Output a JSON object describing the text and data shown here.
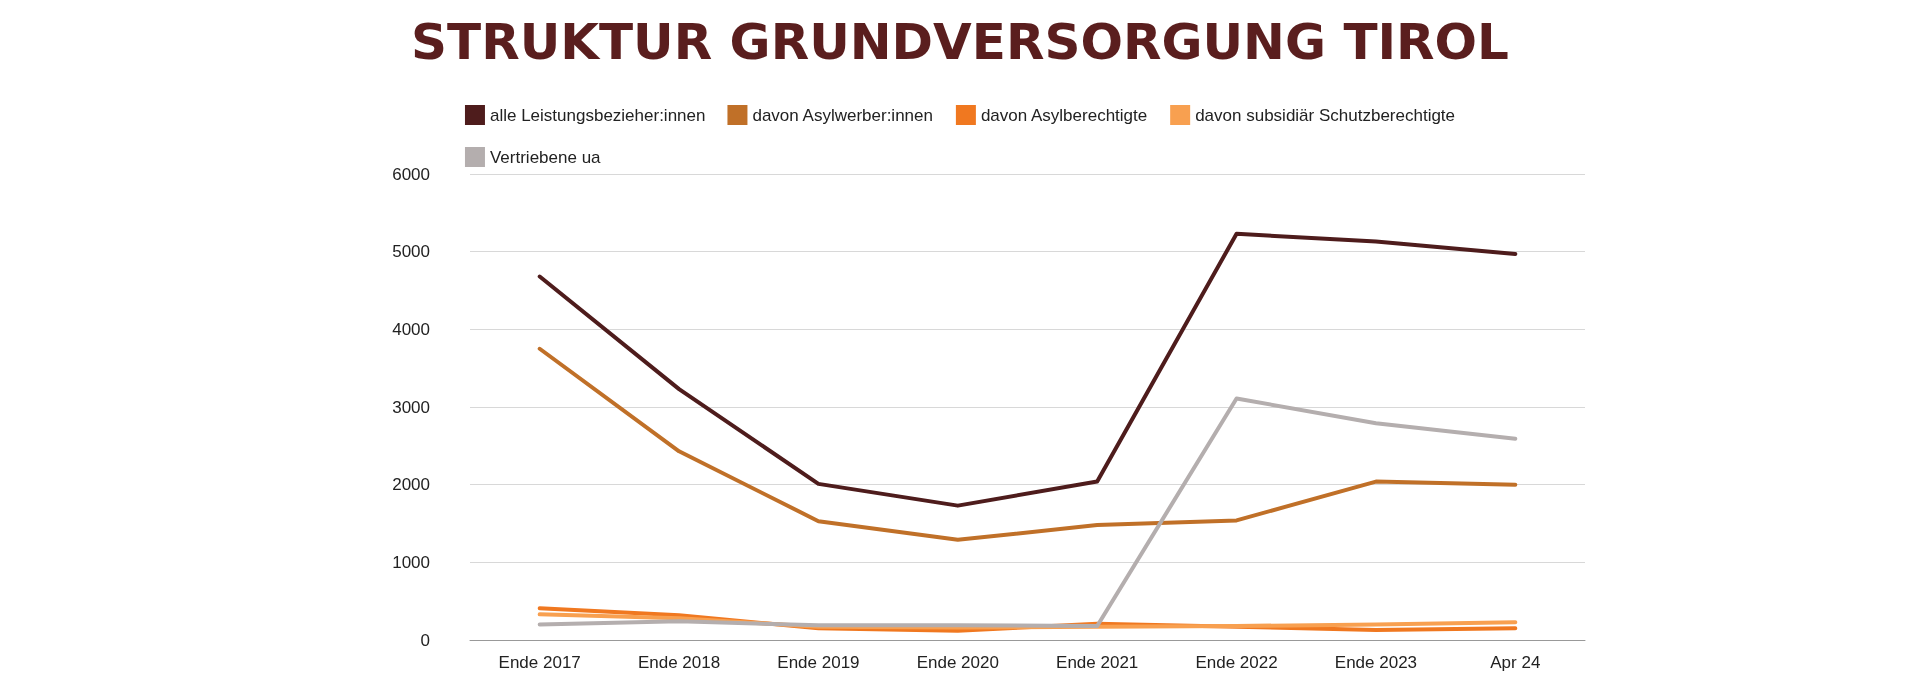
{
  "chart_data": {
    "type": "line",
    "title": "STRUKTUR GRUNDVERSORGUNG TIROL",
    "categories": [
      "Ende 2017",
      "Ende 2018",
      "Ende 2019",
      "Ende 2020",
      "Ende 2021",
      "Ende 2022",
      "Ende 2023",
      "Apr 24"
    ],
    "series": [
      {
        "name": "alle Leistungsbezieher:innen",
        "color": "#4e1c1c",
        "values": [
          4680,
          3230,
          2010,
          1730,
          2040,
          5230,
          5130,
          4970
        ]
      },
      {
        "name": "davon Asylwerber:innen",
        "color": "#c07028",
        "values": [
          3750,
          2430,
          1530,
          1290,
          1480,
          1540,
          2040,
          2000
        ]
      },
      {
        "name": "davon Asylberechtigte",
        "color": "#f07820",
        "values": [
          410,
          320,
          150,
          120,
          210,
          170,
          130,
          150
        ]
      },
      {
        "name": "davon subsidiär Schutzberechtigte",
        "color": "#f8a050",
        "values": [
          330,
          280,
          170,
          160,
          170,
          180,
          200,
          230
        ]
      },
      {
        "name": "Vertriebene ua",
        "color": "#b4aeae",
        "values": [
          200,
          240,
          190,
          190,
          180,
          3110,
          2790,
          2590
        ]
      }
    ],
    "ylim": [
      0,
      6000
    ],
    "yticks": [
      0,
      1000,
      2000,
      3000,
      4000,
      5000,
      6000
    ],
    "grid": "y",
    "legend": "top",
    "marker": "none",
    "line_style": "solid"
  }
}
